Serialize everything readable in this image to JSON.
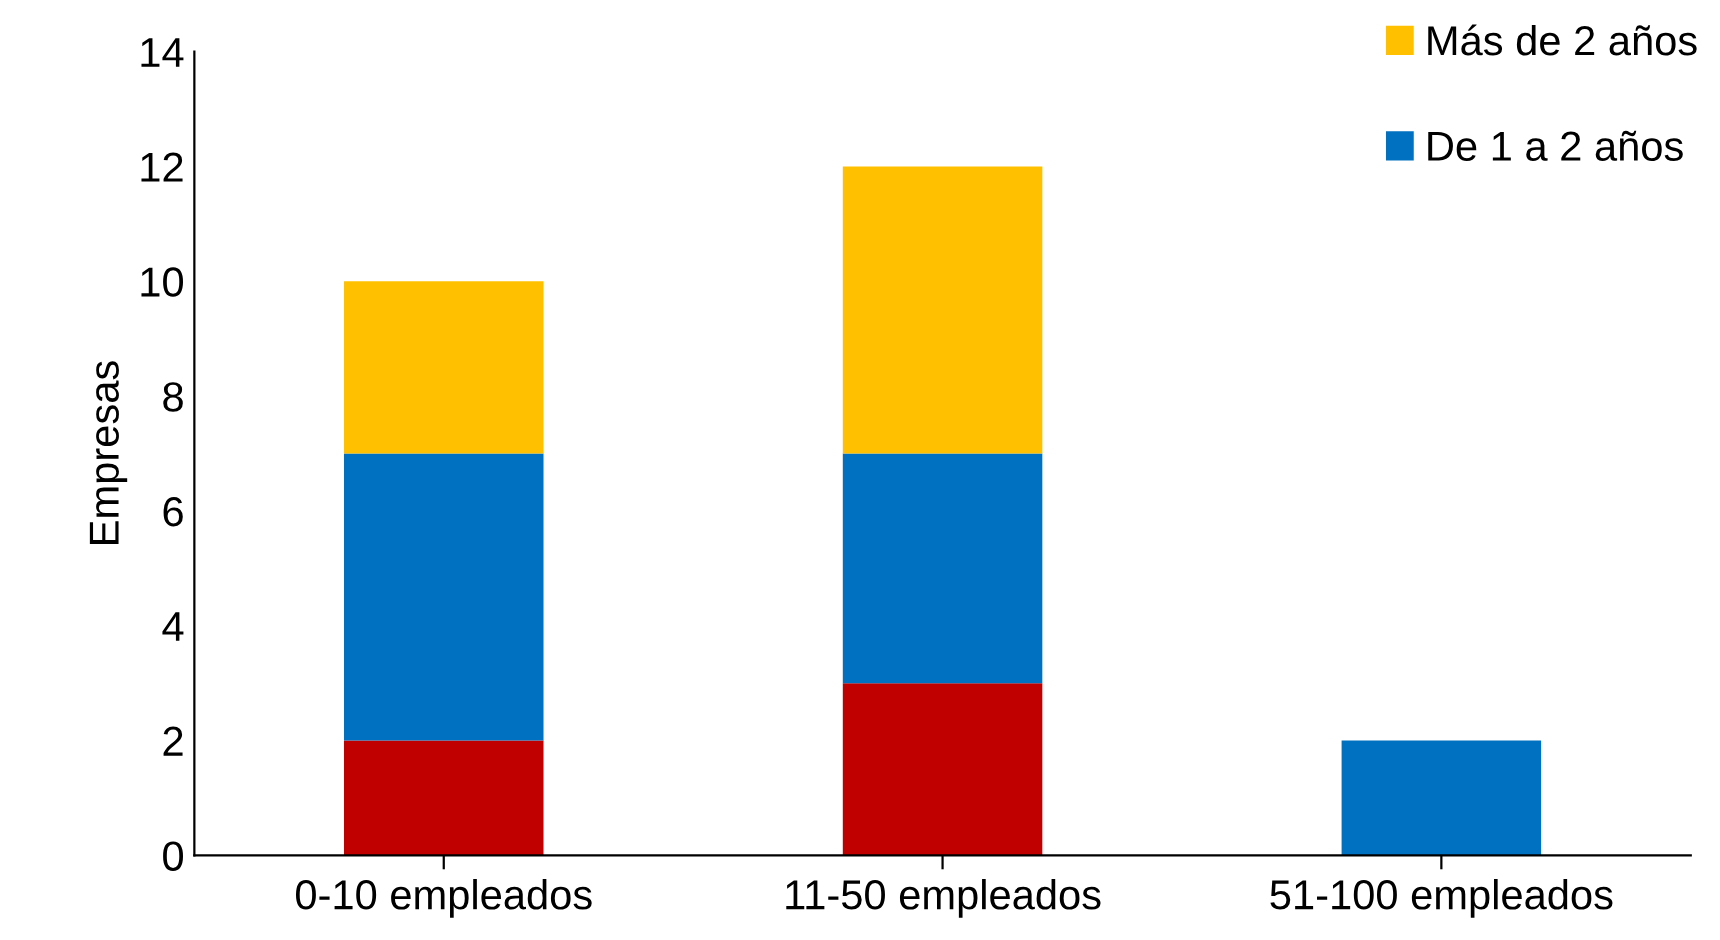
{
  "chart_data": {
    "type": "bar",
    "stacked": true,
    "ylabel": "Empresas",
    "categories": [
      "0-10 empleados",
      "11-50 empleados",
      "51-100 empleados"
    ],
    "series": [
      {
        "color": "#c00000",
        "values": [
          2,
          3,
          null
        ]
      },
      {
        "name": "De 1 a 2 años",
        "color": "#0070c0",
        "values": [
          5,
          4,
          2
        ]
      },
      {
        "name": "Más de 2 años",
        "color": "#ffc000",
        "values": [
          3,
          5,
          null
        ]
      }
    ],
    "ylim": [
      0,
      14
    ],
    "yticks": [
      0,
      2,
      4,
      6,
      8,
      10,
      12,
      14
    ],
    "grid": false,
    "legend": "top right"
  }
}
